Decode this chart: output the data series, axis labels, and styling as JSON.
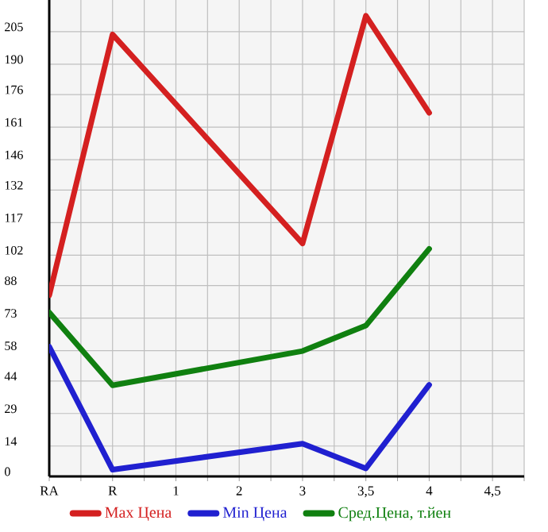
{
  "chart_data": {
    "type": "line",
    "categories": [
      "RA",
      "R",
      "1",
      "2",
      "3",
      "3,5",
      "4",
      "4,5"
    ],
    "series": [
      {
        "name": "Max Цена",
        "color": "#d42020",
        "values": [
          83.5,
          203.7,
          null,
          null,
          107.4,
          212.3,
          167.6,
          null
        ]
      },
      {
        "name": "Min Цена",
        "color": "#2020d0",
        "values": [
          59.8,
          3.1,
          null,
          null,
          15.1,
          3.7,
          42.2,
          null
        ]
      },
      {
        "name": "Сред.Цена, т.йен",
        "color": "#108010",
        "values": [
          75.6,
          42,
          null,
          null,
          57.8,
          69.5,
          104.9,
          null
        ]
      }
    ],
    "ylim": [
      0,
      219.6
    ],
    "yticks": [
      0,
      14,
      29,
      44,
      58,
      73,
      88,
      102,
      117,
      132,
      146,
      161,
      176,
      190,
      205
    ],
    "grid": true,
    "legend": "bottom",
    "marker": "none",
    "line_style": "solid"
  }
}
